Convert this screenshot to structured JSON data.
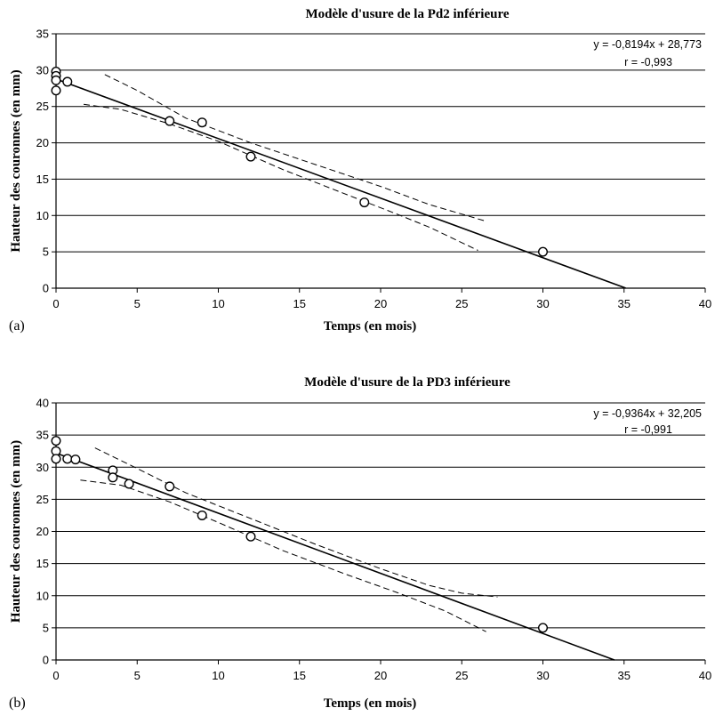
{
  "chart_data": [
    {
      "type": "scatter",
      "panel_label": "(a)",
      "title": "Modèle d'usure de la Pd2 inférieure",
      "xlabel": "Temps (en mois)",
      "ylabel": "Hauteur des couronnes (en mm)",
      "xlim": [
        0,
        40
      ],
      "ylim": [
        0,
        35
      ],
      "xticks": [
        0,
        5,
        10,
        15,
        20,
        25,
        30,
        35,
        40
      ],
      "yticks": [
        0,
        5,
        10,
        15,
        20,
        25,
        30,
        35
      ],
      "grid": "horizontal",
      "equation": "y = -0,8194x + 28,773",
      "r_text": "r = -0,993",
      "points": [
        {
          "x": 0,
          "y": 29.8
        },
        {
          "x": 0,
          "y": 29.2
        },
        {
          "x": 0,
          "y": 28.6
        },
        {
          "x": 0,
          "y": 27.2
        },
        {
          "x": 0.7,
          "y": 28.4
        },
        {
          "x": 7,
          "y": 23.0
        },
        {
          "x": 9,
          "y": 22.8
        },
        {
          "x": 12,
          "y": 18.1
        },
        {
          "x": 19,
          "y": 11.8
        },
        {
          "x": 30,
          "y": 5.0
        }
      ],
      "regression": {
        "slope": -0.8194,
        "intercept": 28.773,
        "x_range": [
          0,
          35.1
        ]
      },
      "confidence_upper": [
        [
          3,
          29.4
        ],
        [
          5,
          27.2
        ],
        [
          8,
          23.4
        ],
        [
          12,
          20.0
        ],
        [
          16,
          17.0
        ],
        [
          20,
          14.0
        ],
        [
          23,
          11.5
        ],
        [
          25,
          10.2
        ],
        [
          26.5,
          9.2
        ]
      ],
      "confidence_lower": [
        [
          1.7,
          25.3
        ],
        [
          4,
          24.6
        ],
        [
          7,
          22.6
        ],
        [
          10,
          20.2
        ],
        [
          14,
          16.3
        ],
        [
          18,
          12.8
        ],
        [
          21,
          10.2
        ],
        [
          23,
          8.4
        ],
        [
          26,
          5.2
        ]
      ]
    },
    {
      "type": "scatter",
      "panel_label": "(b)",
      "title": "Modèle d'usure de la PD3 inférieure",
      "xlabel": "Temps (en mois)",
      "ylabel": "Hauteur des couronnes (en mm)",
      "xlim": [
        0,
        40
      ],
      "ylim": [
        0,
        40
      ],
      "xticks": [
        0,
        5,
        10,
        15,
        20,
        25,
        30,
        35,
        40
      ],
      "yticks": [
        0,
        5,
        10,
        15,
        20,
        25,
        30,
        35,
        40
      ],
      "grid": "horizontal",
      "equation": "y = -0,9364x + 32,205",
      "r_text": "r = -0,991",
      "points": [
        {
          "x": 0,
          "y": 34.1
        },
        {
          "x": 0,
          "y": 32.5
        },
        {
          "x": 0,
          "y": 31.3
        },
        {
          "x": 0.7,
          "y": 31.3
        },
        {
          "x": 1.2,
          "y": 31.2
        },
        {
          "x": 3.5,
          "y": 29.5
        },
        {
          "x": 3.5,
          "y": 28.4
        },
        {
          "x": 4.5,
          "y": 27.4
        },
        {
          "x": 7,
          "y": 27.0
        },
        {
          "x": 9,
          "y": 22.5
        },
        {
          "x": 12,
          "y": 19.2
        },
        {
          "x": 30,
          "y": 5.0
        }
      ],
      "regression": {
        "slope": -0.9364,
        "intercept": 32.205,
        "x_range": [
          0,
          34.4
        ]
      },
      "confidence_upper": [
        [
          2.4,
          33.0
        ],
        [
          5,
          29.8
        ],
        [
          8,
          26.0
        ],
        [
          12,
          22.0
        ],
        [
          16,
          18.0
        ],
        [
          20,
          14.2
        ],
        [
          23,
          11.6
        ],
        [
          25,
          10.4
        ],
        [
          27.2,
          9.8
        ]
      ],
      "confidence_lower": [
        [
          1.5,
          28.0
        ],
        [
          4,
          27.2
        ],
        [
          7,
          24.6
        ],
        [
          10,
          21.4
        ],
        [
          14,
          17.0
        ],
        [
          18,
          13.2
        ],
        [
          21,
          10.5
        ],
        [
          24,
          7.6
        ],
        [
          26.5,
          4.4
        ]
      ]
    }
  ]
}
